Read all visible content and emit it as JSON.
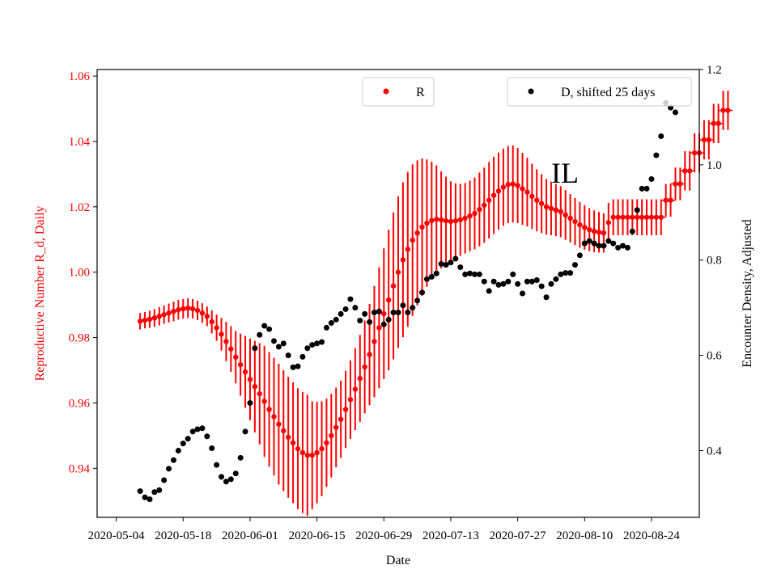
{
  "chart_data": {
    "type": "scatter",
    "annotation": "IL",
    "xlabel": "Date",
    "ylabel_left": "Reproductive Number R_d, Daily",
    "ylabel_right": "Encounter Density, Adjusted",
    "xlim": [
      "2020-04-30",
      "2020-09-03"
    ],
    "ylim_left": [
      0.925,
      1.062
    ],
    "ylim_right": [
      0.26,
      1.2
    ],
    "x_ticks": [
      "2020-05-04",
      "2020-05-18",
      "2020-06-01",
      "2020-06-15",
      "2020-06-29",
      "2020-07-13",
      "2020-07-27",
      "2020-08-10",
      "2020-08-24"
    ],
    "y_ticks_left": [
      "0.94",
      "0.96",
      "0.98",
      "1.00",
      "1.02",
      "1.04",
      "1.06"
    ],
    "y_ticks_right": [
      "0.4",
      "0.6",
      "0.8",
      "1.0",
      "1.2"
    ],
    "colors": {
      "R": "#ff0000",
      "D": "#000000",
      "left_axis": "#ff0000",
      "right_axis": "#000000"
    },
    "legend_R": {
      "label": "R",
      "placement": "upper-center"
    },
    "legend_D": {
      "label": "D, shifted 25 days",
      "placement": "upper-right"
    },
    "R_start_date": "2020-05-09",
    "D_start_date": "2020-05-09",
    "series_R": {
      "name": "R",
      "axis": "left",
      "values": [
        0.985,
        0.9853,
        0.9856,
        0.986,
        0.9865,
        0.987,
        0.9875,
        0.988,
        0.9885,
        0.9888,
        0.989,
        0.9888,
        0.9883,
        0.9875,
        0.9865,
        0.9848,
        0.983,
        0.981,
        0.9788,
        0.9765,
        0.974,
        0.9717,
        0.9695,
        0.9672,
        0.965,
        0.9628,
        0.9605,
        0.958,
        0.9558,
        0.9535,
        0.9515,
        0.9495,
        0.9478,
        0.946,
        0.9448,
        0.944,
        0.944,
        0.9448,
        0.946,
        0.9478,
        0.95,
        0.9525,
        0.955,
        0.958,
        0.961,
        0.9642,
        0.9675,
        0.971,
        0.9748,
        0.9788,
        0.983,
        0.9873,
        0.9915,
        0.9958,
        1.0,
        1.0038,
        1.007,
        1.0098,
        1.012,
        1.0138,
        1.015,
        1.0158,
        1.0162,
        1.016,
        1.0157,
        1.0155,
        1.0157,
        1.016,
        1.0165,
        1.0172,
        1.018,
        1.0192,
        1.0205,
        1.022,
        1.0235,
        1.0248,
        1.026,
        1.0268,
        1.027,
        1.0265,
        1.0255,
        1.0245,
        1.0232,
        1.022,
        1.021,
        1.02,
        1.0195,
        1.019,
        1.0185,
        1.0175,
        1.0165,
        1.0155,
        1.0145,
        1.0137,
        1.013,
        1.0125,
        1.0122,
        1.012,
        1.0152,
        1.0168,
        1.0168,
        1.0168,
        1.0168,
        1.0168,
        1.0168,
        1.0168,
        1.0168,
        1.0168,
        1.0168,
        1.0168,
        1.022,
        1.022,
        1.027,
        1.027,
        1.031,
        1.031,
        1.0365,
        1.0365,
        1.0405,
        1.0405,
        1.0455,
        1.0455,
        1.0495,
        1.0495
      ],
      "err": [
        0.0025,
        0.0025,
        0.0026,
        0.0027,
        0.0028,
        0.0028,
        0.0029,
        0.003,
        0.003,
        0.003,
        0.003,
        0.003,
        0.003,
        0.003,
        0.003,
        0.0035,
        0.004,
        0.005,
        0.006,
        0.007,
        0.008,
        0.0095,
        0.011,
        0.0125,
        0.014,
        0.0155,
        0.017,
        0.0175,
        0.018,
        0.0185,
        0.0185,
        0.0185,
        0.0185,
        0.0185,
        0.0185,
        0.0185,
        0.0165,
        0.0155,
        0.0145,
        0.0135,
        0.0128,
        0.0122,
        0.0118,
        0.0118,
        0.012,
        0.0125,
        0.0133,
        0.0142,
        0.0155,
        0.017,
        0.0185,
        0.02,
        0.0215,
        0.0225,
        0.0232,
        0.0237,
        0.0237,
        0.0232,
        0.0222,
        0.021,
        0.0195,
        0.018,
        0.0165,
        0.0148,
        0.0135,
        0.0123,
        0.0115,
        0.011,
        0.0108,
        0.0108,
        0.011,
        0.0113,
        0.0115,
        0.0117,
        0.0118,
        0.0118,
        0.0118,
        0.0118,
        0.0118,
        0.0115,
        0.011,
        0.0105,
        0.01,
        0.0095,
        0.009,
        0.0085,
        0.0082,
        0.008,
        0.0078,
        0.0076,
        0.0074,
        0.0072,
        0.007,
        0.0068,
        0.0066,
        0.0064,
        0.0062,
        0.006,
        0.006,
        0.0055,
        0.0055,
        0.0055,
        0.0055,
        0.0055,
        0.0055,
        0.0055,
        0.0055,
        0.0055,
        0.0055,
        0.0055,
        0.005,
        0.005,
        0.005,
        0.005,
        0.006,
        0.006,
        0.006,
        0.006,
        0.006,
        0.006,
        0.006,
        0.006,
        0.006,
        0.006
      ]
    },
    "series_D": {
      "name": "D, shifted 25 days",
      "axis": "right",
      "values": [
        0.315,
        0.302,
        0.298,
        0.313,
        0.317,
        0.338,
        0.362,
        0.38,
        0.4,
        0.415,
        0.425,
        0.44,
        0.445,
        0.447,
        0.43,
        0.405,
        0.37,
        0.345,
        0.335,
        0.34,
        0.352,
        0.385,
        0.44,
        0.5,
        0.615,
        0.643,
        0.662,
        0.655,
        0.63,
        0.618,
        0.625,
        0.6,
        0.575,
        0.577,
        0.597,
        0.615,
        0.622,
        0.625,
        0.628,
        0.658,
        0.668,
        0.675,
        0.687,
        0.697,
        0.718,
        0.7,
        0.673,
        0.687,
        0.67,
        0.69,
        0.692,
        0.665,
        0.675,
        0.69,
        0.69,
        0.705,
        0.69,
        0.7,
        0.715,
        0.732,
        0.76,
        0.765,
        0.772,
        0.792,
        0.79,
        0.795,
        0.803,
        0.785,
        0.77,
        0.772,
        0.77,
        0.77,
        0.755,
        0.735,
        0.755,
        0.748,
        0.75,
        0.755,
        0.77,
        0.75,
        0.73,
        0.755,
        0.755,
        0.758,
        0.745,
        0.722,
        0.75,
        0.76,
        0.77,
        0.773,
        0.773,
        0.79,
        0.81,
        0.835,
        0.84,
        0.835,
        0.83,
        0.83,
        0.84,
        0.835,
        0.826,
        0.83,
        0.826,
        0.86,
        0.905,
        0.95,
        0.95,
        0.97,
        1.02,
        1.06,
        1.13,
        1.12,
        1.11
      ]
    }
  }
}
